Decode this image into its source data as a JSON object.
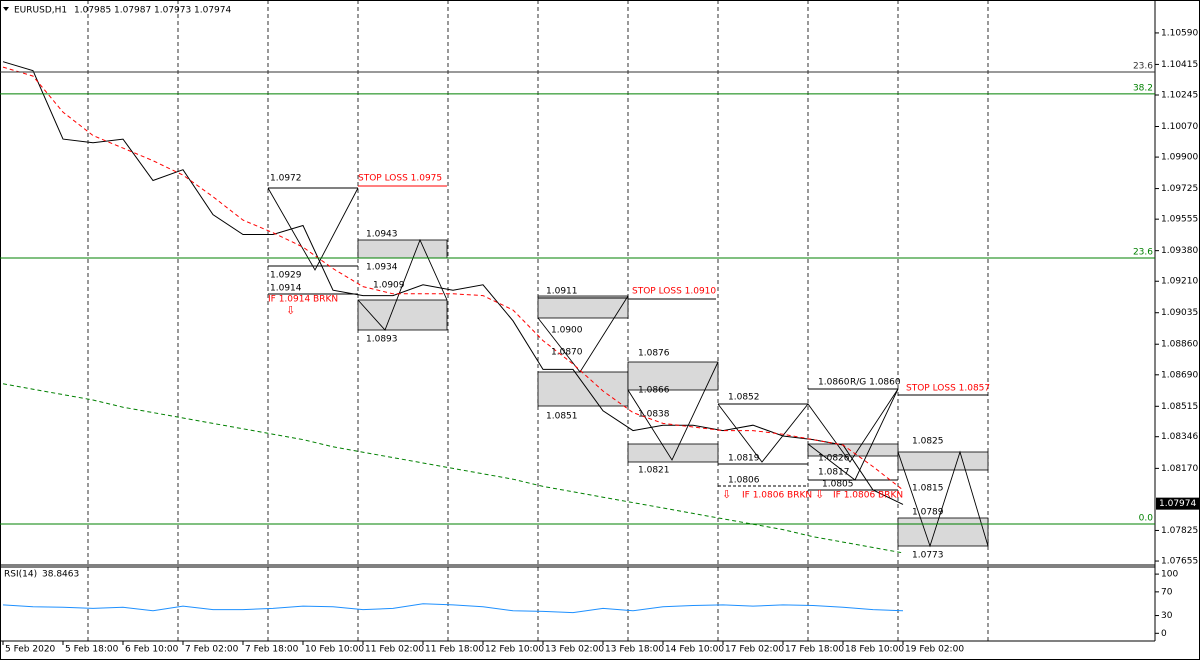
{
  "chart_data": [
    {
      "type": "line",
      "title": "EURUSD,H1",
      "header_values": [
        1.07985,
        1.07987,
        1.07973,
        1.07974
      ],
      "current_price": 1.07974,
      "categories": [
        "5 Feb 2020",
        null,
        "5 Feb 18:00",
        null,
        "6 Feb 10:00",
        null,
        "7 Feb 02:00",
        null,
        "7 Feb 18:00",
        null,
        "10 Feb 10:00",
        null,
        "11 Feb 02:00",
        null,
        "11 Feb 18:00",
        null,
        "12 Feb 10:00",
        null,
        "13 Feb 02:00",
        null,
        "13 Feb 18:00",
        null,
        "14 Feb 10:00",
        null,
        "17 Feb 02:00",
        null,
        "17 Feb 18:00",
        null,
        "18 Feb 10:00",
        null,
        "19 Feb 02:00"
      ],
      "series": [
        {
          "color": "#000000",
          "style": "solid",
          "values": [
            1.1043,
            1.1038,
            1.1,
            1.0998,
            1.1,
            1.0977,
            1.0983,
            1.0958,
            1.0947,
            1.0947,
            1.0952,
            1.0916,
            1.0913,
            1.0913,
            1.0919,
            1.0916,
            1.0919,
            1.0899,
            1.0872,
            1.0872,
            1.0849,
            1.0838,
            1.0841,
            1.0841,
            1.0838,
            1.0841,
            1.0835,
            1.0833,
            1.083,
            1.0805,
            1.0797
          ]
        },
        {
          "color": "#ff0000",
          "style": "dashed",
          "values": [
            1.104,
            1.1035,
            1.1015,
            1.1002,
            1.0995,
            1.0988,
            1.098,
            1.0968,
            1.0955,
            1.0948,
            1.094,
            1.0928,
            1.0918,
            1.0914,
            1.0914,
            1.0914,
            1.0913,
            1.0905,
            1.0888,
            1.0875,
            1.086,
            1.0848,
            1.0842,
            1.084,
            1.0838,
            1.0838,
            1.0836,
            1.0833,
            1.083,
            1.0818,
            1.0805
          ]
        },
        {
          "color": "#008000",
          "style": "dashed",
          "values": [
            1.0864,
            1.0861,
            1.0858,
            1.0855,
            1.0851,
            1.0848,
            1.0845,
            1.0842,
            1.0839,
            1.0836,
            1.0833,
            1.0829,
            1.0826,
            1.0823,
            1.082,
            1.0817,
            1.0814,
            1.0811,
            1.0807,
            1.0804,
            1.0801,
            1.0798,
            1.0795,
            1.0792,
            1.0789,
            1.0786,
            1.0783,
            1.0779,
            1.0776,
            1.0773,
            1.077
          ]
        }
      ],
      "ylim": [
        1.07633,
        1.10773
      ],
      "yticks": [
        {
          "value": 1.1059,
          "label": "1.10590"
        },
        {
          "value": 1.10415,
          "label": "1.10415"
        },
        {
          "value": 1.10245,
          "label": "1.10245"
        },
        {
          "value": 1.1007,
          "label": "1.10070"
        },
        {
          "value": 1.099,
          "label": "1.09900"
        },
        {
          "value": 1.09725,
          "label": "1.09725"
        },
        {
          "value": 1.09555,
          "label": "1.09555"
        },
        {
          "value": 1.0938,
          "label": "1.09380"
        },
        {
          "value": 1.0921,
          "label": "1.09210"
        },
        {
          "value": 1.09035,
          "label": "1.09035"
        },
        {
          "value": 1.0886,
          "label": "1.08860"
        },
        {
          "value": 1.0869,
          "label": "1.08690"
        },
        {
          "value": 1.08515,
          "label": "1.08515"
        },
        {
          "value": 1.08346,
          "label": "1.08346"
        },
        {
          "value": 1.0817,
          "label": "1.08170"
        },
        {
          "value": 1.07825,
          "label": "1.07825"
        },
        {
          "value": 1.07655,
          "label": "1.07655"
        }
      ],
      "fib_levels": [
        {
          "label": "23.6",
          "price": 1.10373,
          "color": "#333333"
        },
        {
          "label": "38.2",
          "price": 1.10251,
          "color": "#008000"
        },
        {
          "label": "23.6",
          "price": 1.09339,
          "color": "#008000"
        },
        {
          "label": "0.0",
          "price": 1.07861,
          "color": "#008000"
        }
      ],
      "annotations": [
        {
          "text": "1.0972",
          "color": "#000000"
        },
        {
          "text": "STOP LOSS  1.0975",
          "color": "#ff0000"
        },
        {
          "text": "1.0943",
          "color": "#000000"
        },
        {
          "text": "1.0934",
          "color": "#000000"
        },
        {
          "text": "1.0929",
          "color": "#000000"
        },
        {
          "text": "1.0914",
          "color": "#000000"
        },
        {
          "text": "1.0909",
          "color": "#000000"
        },
        {
          "text": "IF 1.0914 BRKN",
          "color": "#ff0000"
        },
        {
          "text": "1.0893",
          "color": "#000000"
        },
        {
          "text": "1.0911",
          "color": "#000000"
        },
        {
          "text": "STOP LOSS  1.0910",
          "color": "#ff0000"
        },
        {
          "text": "1.0900",
          "color": "#000000"
        },
        {
          "text": "1.0876",
          "color": "#000000"
        },
        {
          "text": "1.0870",
          "color": "#000000"
        },
        {
          "text": "1.0866",
          "color": "#000000"
        },
        {
          "text": "1.0838",
          "color": "#000000"
        },
        {
          "text": "1.0851",
          "color": "#000000"
        },
        {
          "text": "1.0821",
          "color": "#000000"
        },
        {
          "text": "1.0852",
          "color": "#000000"
        },
        {
          "text": "1.0860",
          "color": "#000000"
        },
        {
          "text": "R/G 1.0860",
          "color": "#000000"
        },
        {
          "text": "STOP LOSS  1.0857",
          "color": "#ff0000"
        },
        {
          "text": "1.0819",
          "color": "#000000"
        },
        {
          "text": "1.0826",
          "color": "#000000"
        },
        {
          "text": "1.0817",
          "color": "#000000"
        },
        {
          "text": "1.0806",
          "color": "#000000"
        },
        {
          "text": "1.0805",
          "color": "#000000"
        },
        {
          "text": "IF 1.0806 BRKN",
          "color": "#ff0000"
        },
        {
          "text": "IF 1.0806 BRKN",
          "color": "#ff0000"
        },
        {
          "text": "1.0825",
          "color": "#000000"
        },
        {
          "text": "1.0815",
          "color": "#000000"
        },
        {
          "text": "1.0789",
          "color": "#000000"
        },
        {
          "text": "1.0773",
          "color": "#000000"
        }
      ]
    },
    {
      "type": "line",
      "title": "RSI(14)",
      "current_value": 38.8463,
      "series": [
        {
          "color": "#1e90ff",
          "style": "solid",
          "values": [
            48,
            45,
            44,
            42,
            44,
            38,
            46,
            40,
            40,
            42,
            46,
            45,
            40,
            42,
            50,
            48,
            45,
            38,
            37,
            35,
            42,
            38,
            45,
            47,
            48,
            46,
            48,
            47,
            44,
            40,
            38
          ]
        }
      ],
      "ylim": [
        -13,
        112
      ],
      "yticks": [
        100,
        70,
        30,
        0
      ]
    }
  ]
}
